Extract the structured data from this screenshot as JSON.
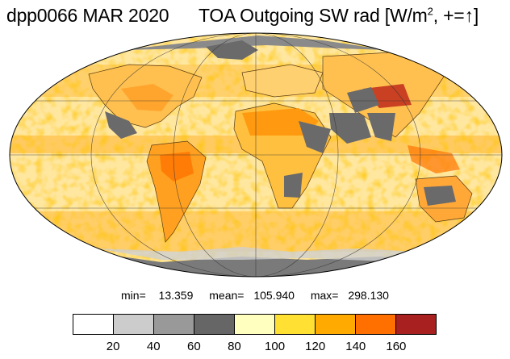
{
  "title": {
    "left": "dpp0066 MAR 2020",
    "right_prefix": "TOA Outgoing SW rad [W/m",
    "right_sup": "2",
    "right_suffix": ", +=",
    "arrow": "↑",
    "right_close": "]"
  },
  "stats": {
    "min_label": "min=",
    "min": "13.359",
    "mean_label": "mean=",
    "mean": "105.940",
    "max_label": "max=",
    "max": "298.130"
  },
  "colorbar": {
    "colors": [
      "#ffffff",
      "#cccccc",
      "#999999",
      "#666666",
      "#ffffc0",
      "#ffe033",
      "#ffaa00",
      "#ff7000",
      "#a82020"
    ],
    "ticks": [
      "20",
      "40",
      "60",
      "80",
      "100",
      "120",
      "140",
      "160"
    ]
  },
  "map": {
    "projection": "mollweide",
    "base_color": "#ffe7a0",
    "land_dark_color": "#6a6a6a"
  }
}
